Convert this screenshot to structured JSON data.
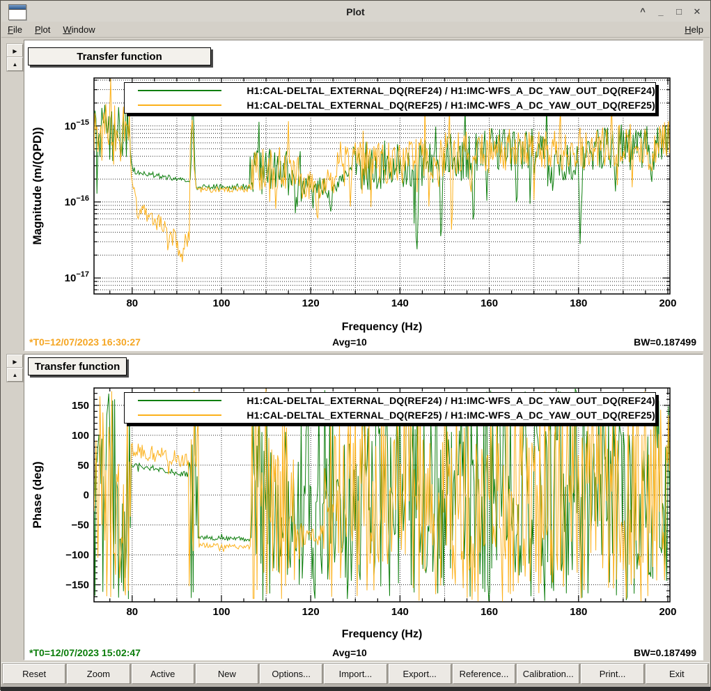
{
  "window": {
    "title": "Plot",
    "controls": [
      {
        "name": "shade-button",
        "glyph": "^"
      },
      {
        "name": "minimize-button",
        "glyph": "_"
      },
      {
        "name": "maximize-button",
        "glyph": "□"
      },
      {
        "name": "close-button",
        "glyph": "✕"
      }
    ]
  },
  "menu": {
    "left": [
      {
        "id": "file",
        "label": "File"
      },
      {
        "id": "plot",
        "label": "Plot"
      },
      {
        "id": "window",
        "label": "Window"
      }
    ],
    "right": [
      {
        "id": "help",
        "label": "Help"
      }
    ]
  },
  "pane_controls": {
    "right_glyph": "▶",
    "up_glyph": "▲"
  },
  "toolbar": {
    "buttons": [
      "Reset",
      "Zoom",
      "Active",
      "New",
      "Options...",
      "Import...",
      "Export...",
      "Reference...",
      "Calibration...",
      "Print...",
      "Exit"
    ]
  },
  "colors": {
    "trace_green": "#0f7f0f",
    "trace_orange": "#fcb11b",
    "t0_orange": "#f5a623",
    "t0_green": "#0b7d0b",
    "window_bg": "#d4d0c8",
    "canvas_bg": "#ffffff"
  },
  "chart_data": [
    {
      "type": "line",
      "title": "Transfer function",
      "xlabel": "Frequency (Hz)",
      "ylabel": "Magnitude (m/(QPD))",
      "x_scale": "linear",
      "y_scale": "log",
      "xlim": [
        71.45,
        200.47
      ],
      "ylim_log10": [
        -17.21,
        -14.37
      ],
      "x_major_ticks": [
        80,
        100,
        120,
        140,
        160,
        180,
        200
      ],
      "x_minor_step": 5,
      "x_grid_step": 10,
      "y_decades": [
        -17,
        -16,
        -15
      ],
      "grid": true,
      "legend_position": "top",
      "legend": [
        {
          "label": "H1:CAL-DELTAL_EXTERNAL_DQ(REF24) / H1:IMC-WFS_A_DC_YAW_OUT_DQ(REF24)",
          "color": "#0f7f0f"
        },
        {
          "label": "H1:CAL-DELTAL_EXTERNAL_DQ(REF25) / H1:IMC-WFS_A_DC_YAW_OUT_DQ(REF25)",
          "color": "#fcb11b"
        }
      ],
      "footer": {
        "t0": "*T0=12/07/2023 16:30:27",
        "t0_color": "#f5a623",
        "avg": "Avg=10",
        "bw": "BW=0.187499"
      },
      "bin_hz": 0.22,
      "seed": 20231207,
      "series": [
        {
          "name": "H1:CAL-DELTAL_EXTERNAL_DQ(REF24) / H1:IMC-WFS_A_DC_YAW_OUT_DQ(REF24)",
          "color": "#0f7f0f",
          "value_unit": "log10_magnitude",
          "segments": [
            [
              71.45,
              79.5,
              -15.02,
              -15.08,
              0.42
            ],
            [
              79.5,
              80.5,
              -15.3,
              -15.62,
              0.08
            ],
            [
              80.5,
              94.3,
              -15.6,
              -15.74,
              0.035
            ],
            [
              94.3,
              106.2,
              -15.81,
              -15.8,
              0.04
            ],
            [
              106.2,
              118,
              -15.6,
              -15.63,
              0.32
            ],
            [
              118,
              126,
              -15.82,
              -15.78,
              0.17
            ],
            [
              126,
              129.5,
              -15.74,
              -15.56,
              0.09
            ],
            [
              129.5,
              146,
              -15.52,
              -15.5,
              0.33
            ],
            [
              146,
              158,
              -15.44,
              -15.4,
              0.33
            ],
            [
              158,
              173,
              -15.32,
              -15.3,
              0.3
            ],
            [
              173,
              179,
              -15.52,
              -15.52,
              0.28
            ],
            [
              179,
              200.5,
              -15.34,
              -15.24,
              0.31
            ]
          ],
          "features": [
            [
              93.6,
              0.25,
              1.02
            ],
            [
              116.9,
              0.25,
              -0.6
            ],
            [
              124.5,
              0.25,
              -0.4
            ],
            [
              143.8,
              0.22,
              -1.45
            ],
            [
              149.2,
              0.2,
              -0.8
            ],
            [
              156.5,
              0.2,
              -0.75
            ],
            [
              166.2,
              0.22,
              -0.55
            ],
            [
              180.4,
              0.22,
              -1.15
            ],
            [
              188.2,
              0.25,
              -0.5
            ],
            [
              196.5,
              0.22,
              -0.45
            ]
          ]
        },
        {
          "name": "H1:CAL-DELTAL_EXTERNAL_DQ(REF25) / H1:IMC-WFS_A_DC_YAW_OUT_DQ(REF25)",
          "color": "#fcb11b",
          "value_unit": "log10_magnitude",
          "segments": [
            [
              71.45,
              79.5,
              -15.05,
              -15.1,
              0.4
            ],
            [
              79.5,
              81,
              -15.45,
              -16.06,
              0.1
            ],
            [
              81,
              92.8,
              -16.08,
              -16.52,
              0.13
            ],
            [
              92.8,
              94.4,
              -15.3,
              -15.84,
              0.06
            ],
            [
              94.4,
              106.2,
              -15.84,
              -15.83,
              0.04
            ],
            [
              106.2,
              118,
              -15.56,
              -15.58,
              0.3
            ],
            [
              118,
              126,
              -15.79,
              -15.74,
              0.19
            ],
            [
              126,
              143,
              -15.5,
              -15.46,
              0.3
            ],
            [
              143,
              160,
              -15.42,
              -15.36,
              0.31
            ],
            [
              160,
              175,
              -15.3,
              -15.3,
              0.27
            ],
            [
              175,
              200.5,
              -15.3,
              -15.2,
              0.29
            ]
          ],
          "features": [
            [
              93.5,
              0.25,
              0.6
            ],
            [
              90.9,
              0.45,
              -0.33
            ],
            [
              88.5,
              1.1,
              -0.1
            ],
            [
              121.5,
              0.25,
              -0.45
            ],
            [
              151.6,
              0.22,
              -0.65
            ],
            [
              163.1,
              0.22,
              -0.55
            ],
            [
              196.2,
              0.25,
              -0.5
            ]
          ]
        }
      ]
    },
    {
      "type": "line",
      "title": "Transfer function",
      "xlabel": "Frequency (Hz)",
      "ylabel": "Phase (deg)",
      "x_scale": "linear",
      "y_scale": "linear",
      "xlim": [
        71.45,
        200.47
      ],
      "ylim": [
        -178.5,
        179
      ],
      "x_major_ticks": [
        80,
        100,
        120,
        140,
        160,
        180,
        200
      ],
      "x_minor_step": 5,
      "x_grid_step": 10,
      "y_major_ticks": [
        150,
        100,
        50,
        0,
        -50,
        -100,
        -150
      ],
      "y_minor_step": 10,
      "y_grid_step": 50,
      "grid": true,
      "legend_position": "top",
      "legend": [
        {
          "label": "H1:CAL-DELTAL_EXTERNAL_DQ(REF24) / H1:IMC-WFS_A_DC_YAW_OUT_DQ(REF24)",
          "color": "#0f7f0f"
        },
        {
          "label": "H1:CAL-DELTAL_EXTERNAL_DQ(REF25) / H1:IMC-WFS_A_DC_YAW_OUT_DQ(REF25)",
          "color": "#fcb11b"
        }
      ],
      "footer": {
        "t0": "*T0=12/07/2023 15:02:47",
        "t0_color": "#0b7d0b",
        "avg": "Avg=10",
        "bw": "BW=0.187499"
      },
      "bin_hz": 0.22,
      "seed": 15024723,
      "series": [
        {
          "name": "H1:CAL-DELTAL_EXTERNAL_DQ(REF24) / H1:IMC-WFS_A_DC_YAW_OUT_DQ(REF24)",
          "color": "#0f7f0f",
          "value_unit": "degrees",
          "segments": [
            [
              71.45,
              79.6,
              0,
              0,
              -1
            ],
            [
              79.6,
              92.6,
              52,
              34,
              5
            ],
            [
              92.6,
              94.6,
              0,
              0,
              -1
            ],
            [
              94.6,
              106.6,
              -71,
              -74,
              4
            ],
            [
              106.6,
              200.5,
              0,
              0,
              -1
            ]
          ],
          "features": []
        },
        {
          "name": "H1:CAL-DELTAL_EXTERNAL_DQ(REF25) / H1:IMC-WFS_A_DC_YAW_OUT_DQ(REF25)",
          "color": "#fcb11b",
          "value_unit": "degrees",
          "segments": [
            [
              71.45,
              79.6,
              0,
              0,
              -1
            ],
            [
              79.6,
              92.6,
              76,
              58,
              13
            ],
            [
              92.6,
              94.8,
              0,
              0,
              -1
            ],
            [
              94.8,
              106.6,
              -84,
              -87,
              4
            ],
            [
              106.6,
              116.5,
              0,
              0,
              -1
            ],
            [
              116.5,
              123,
              -68,
              -68,
              22
            ],
            [
              123,
              200.5,
              0,
              0,
              -1
            ]
          ],
          "features": []
        }
      ]
    }
  ]
}
